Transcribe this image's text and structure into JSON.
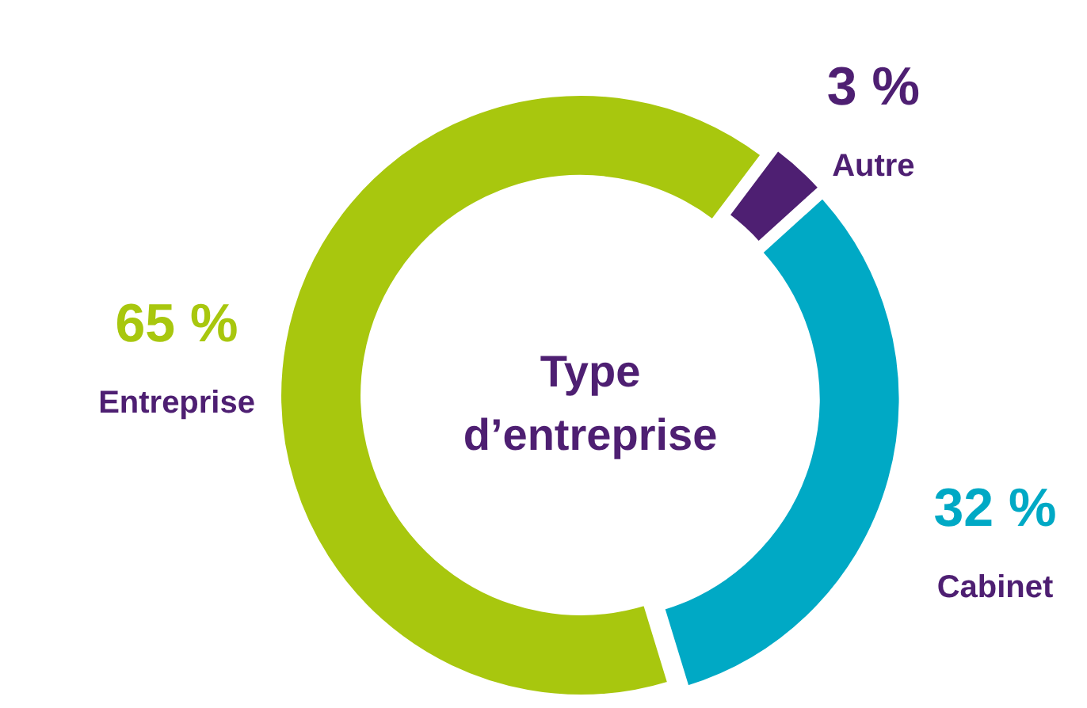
{
  "chart_data": {
    "type": "donut",
    "title": "Type d’entreprise",
    "categories": [
      "Entreprise",
      "Autre",
      "Cabinet"
    ],
    "values": [
      65,
      3,
      32
    ],
    "colors": [
      "#a8c70e",
      "#4e1f72",
      "#00a9c5"
    ],
    "data_labels": true,
    "value_labels": [
      "65 %",
      "3 %",
      "32 %"
    ]
  }
}
